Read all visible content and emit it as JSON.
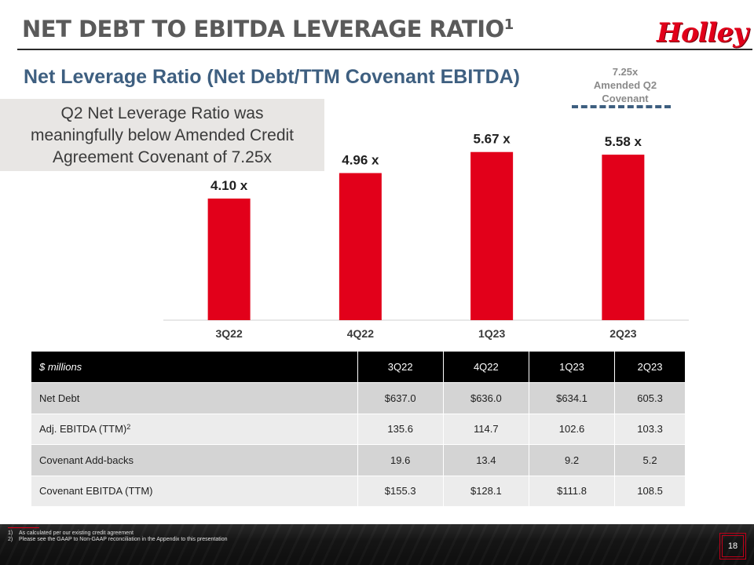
{
  "header": {
    "title": "NET DEBT TO EBITDA LEVERAGE RATIO",
    "title_sup": "1",
    "logo_text": "Holley"
  },
  "subtitle": "Net Leverage Ratio (Net Debt/TTM Covenant EBITDA)",
  "covenant": {
    "value": "7.25x",
    "label_line1": "Amended Q2",
    "label_line2": "Covenant"
  },
  "callout": {
    "line1": "Q2 Net Leverage Ratio was",
    "line2": "meaningfully below Amended Credit",
    "line3": "Agreement Covenant of 7.25x"
  },
  "chart_data": {
    "type": "bar",
    "categories": [
      "3Q22",
      "4Q22",
      "1Q23",
      "2Q23"
    ],
    "values": [
      4.1,
      4.96,
      5.67,
      5.58
    ],
    "data_labels": [
      "4.10 x",
      "4.96 x",
      "5.67 x",
      "5.58 x"
    ],
    "reference_line": 7.25,
    "ylim": [
      0,
      7.25
    ],
    "bar_color": "#e2001a",
    "reference_color": "#3e5f80",
    "grid": false,
    "title": "",
    "xlabel": "",
    "ylabel": ""
  },
  "table": {
    "header": [
      "$ millions",
      "3Q22",
      "4Q22",
      "1Q23",
      "2Q23"
    ],
    "rows": [
      {
        "label": "Net Debt",
        "sup": "",
        "cells": [
          "$637.0",
          "$636.0",
          "$634.1",
          "605.3"
        ]
      },
      {
        "label": "Adj. EBITDA (TTM)",
        "sup": "2",
        "cells": [
          "135.6",
          "114.7",
          "102.6",
          "103.3"
        ]
      },
      {
        "label": "Covenant Add-backs",
        "sup": "",
        "cells": [
          "19.6",
          "13.4",
          "9.2",
          "5.2"
        ]
      },
      {
        "label": "Covenant EBITDA (TTM)",
        "sup": "",
        "cells": [
          "$155.3",
          "$128.1",
          "$111.8",
          "108.5"
        ]
      }
    ]
  },
  "footnotes": [
    {
      "num": "1)",
      "text": "As calculated per our existing credit agreement"
    },
    {
      "num": "2)",
      "text": "Please see the GAAP to Non-GAAP reconciliation in the Appendix to this presentation"
    }
  ],
  "page_number": "18",
  "colors": {
    "accent_red": "#e2001a",
    "navy": "#3e5f80",
    "title_gray": "#5a5a5a"
  }
}
